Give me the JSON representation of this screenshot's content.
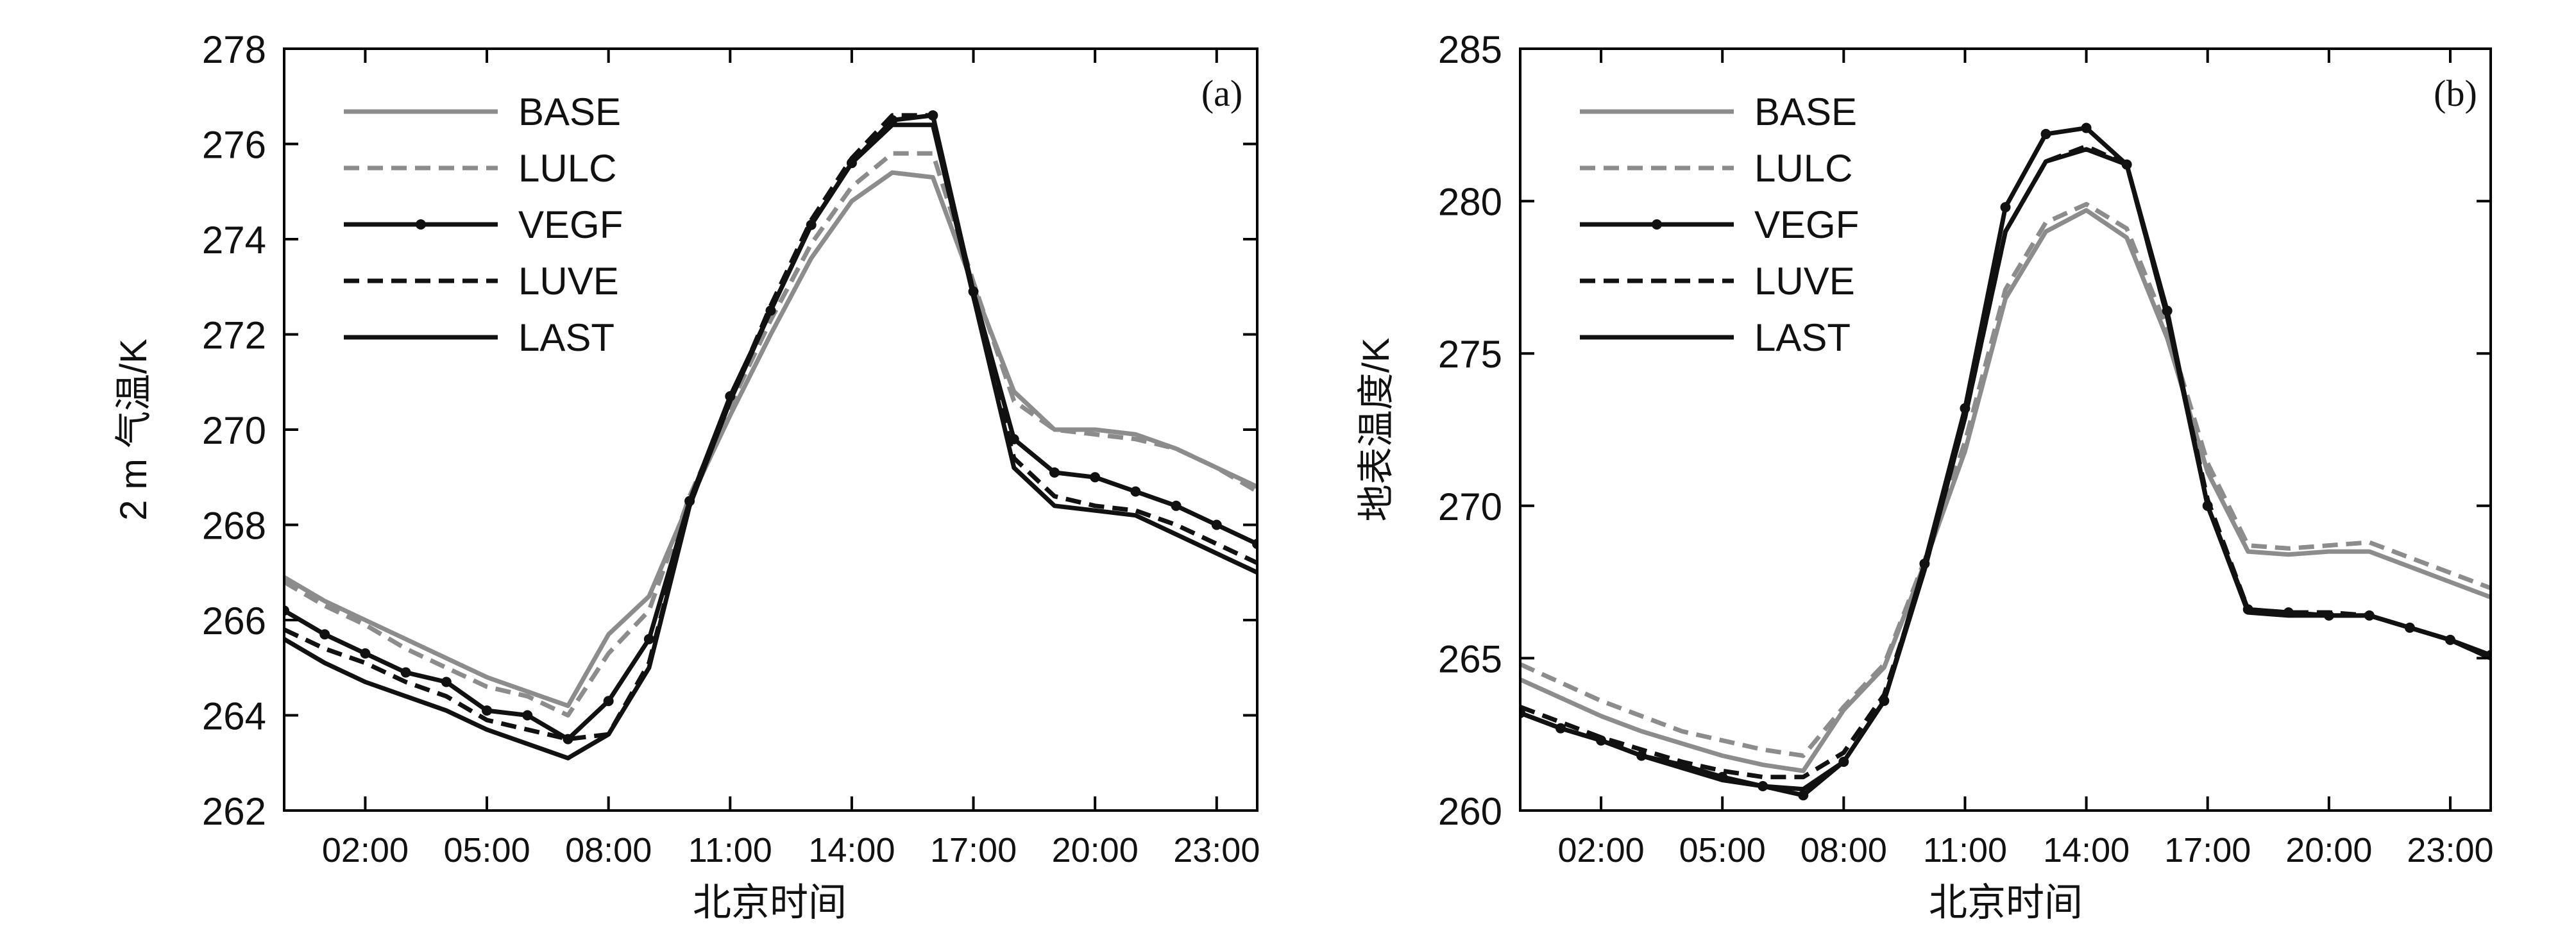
{
  "chart_data": [
    {
      "type": "line",
      "panel_label": "(a)",
      "xlabel": "北京时间",
      "ylabel": "2 m 气温/K",
      "xlim": [
        0,
        24
      ],
      "ylim": [
        262,
        278
      ],
      "yticks": [
        262,
        264,
        266,
        268,
        270,
        272,
        274,
        276,
        278
      ],
      "xticks": [
        2,
        5,
        8,
        11,
        14,
        17,
        20,
        23
      ],
      "xtick_labels": [
        "02:00",
        "05:00",
        "08:00",
        "11:00",
        "14:00",
        "17:00",
        "20:00",
        "23:00"
      ],
      "grid": false,
      "legend_position": "top-left",
      "x": [
        0,
        1,
        2,
        3,
        4,
        5,
        6,
        7,
        8,
        9,
        10,
        11,
        12,
        13,
        14,
        15,
        16,
        17,
        18,
        19,
        20,
        21,
        22,
        23,
        24
      ],
      "series": [
        {
          "name": "BASE",
          "color": "#8c8c8c",
          "style": "solid",
          "marker": false,
          "values": [
            266.9,
            266.4,
            266.0,
            265.6,
            265.2,
            264.8,
            264.5,
            264.2,
            265.7,
            266.5,
            268.5,
            270.3,
            272.0,
            273.6,
            274.8,
            275.4,
            275.3,
            273.0,
            270.8,
            270.0,
            270.0,
            269.9,
            269.6,
            269.2,
            268.8
          ]
        },
        {
          "name": "LULC",
          "color": "#8c8c8c",
          "style": "dashed",
          "marker": false,
          "values": [
            266.8,
            266.3,
            265.9,
            265.4,
            265.0,
            264.6,
            264.4,
            264.0,
            265.3,
            266.2,
            268.6,
            270.5,
            272.3,
            273.9,
            275.1,
            275.8,
            275.8,
            273.1,
            270.6,
            270.0,
            269.9,
            269.8,
            269.6,
            269.2,
            268.7
          ]
        },
        {
          "name": "VEGF",
          "color": "#111111",
          "style": "solid",
          "marker": true,
          "values": [
            266.2,
            265.7,
            265.3,
            264.9,
            264.7,
            264.1,
            264.0,
            263.5,
            264.3,
            265.6,
            268.5,
            270.7,
            272.5,
            274.3,
            275.6,
            276.5,
            276.6,
            272.9,
            269.8,
            269.1,
            269.0,
            268.7,
            268.4,
            268.0,
            267.6
          ]
        },
        {
          "name": "LUVE",
          "color": "#111111",
          "style": "dashed",
          "marker": false,
          "values": [
            265.8,
            265.4,
            265.1,
            264.7,
            264.4,
            263.9,
            263.7,
            263.5,
            263.6,
            265.1,
            268.4,
            270.6,
            272.6,
            274.4,
            275.7,
            276.6,
            276.6,
            272.8,
            269.4,
            268.6,
            268.4,
            268.3,
            268.0,
            267.6,
            267.2
          ]
        },
        {
          "name": "LAST",
          "color": "#111111",
          "style": "solid",
          "marker": false,
          "values": [
            265.6,
            265.1,
            264.7,
            264.4,
            264.1,
            263.7,
            263.4,
            263.1,
            263.6,
            265.0,
            268.4,
            270.6,
            272.5,
            274.3,
            275.6,
            276.4,
            276.4,
            272.8,
            269.2,
            268.4,
            268.3,
            268.2,
            267.8,
            267.4,
            267.0
          ]
        }
      ]
    },
    {
      "type": "line",
      "panel_label": "(b)",
      "xlabel": "北京时间",
      "ylabel": "地表温度/K",
      "xlim": [
        0,
        24
      ],
      "ylim": [
        260,
        285
      ],
      "yticks": [
        260,
        265,
        270,
        275,
        280,
        285
      ],
      "xticks": [
        2,
        5,
        8,
        11,
        14,
        17,
        20,
        23
      ],
      "xtick_labels": [
        "02:00",
        "05:00",
        "08:00",
        "11:00",
        "14:00",
        "17:00",
        "20:00",
        "23:00"
      ],
      "grid": false,
      "legend_position": "top-left",
      "x": [
        0,
        1,
        2,
        3,
        4,
        5,
        6,
        7,
        8,
        9,
        10,
        11,
        12,
        13,
        14,
        15,
        16,
        17,
        18,
        19,
        20,
        21,
        22,
        23,
        24
      ],
      "series": [
        {
          "name": "BASE",
          "color": "#8c8c8c",
          "style": "solid",
          "marker": false,
          "values": [
            264.3,
            263.7,
            263.1,
            262.6,
            262.2,
            261.8,
            261.5,
            261.3,
            263.3,
            264.7,
            268.1,
            271.8,
            276.8,
            279.0,
            279.7,
            278.8,
            275.5,
            271.1,
            268.5,
            268.4,
            268.5,
            268.5,
            268.0,
            267.5,
            267.0
          ]
        },
        {
          "name": "LULC",
          "color": "#8c8c8c",
          "style": "dashed",
          "marker": false,
          "values": [
            264.8,
            264.2,
            263.6,
            263.1,
            262.6,
            262.3,
            262.0,
            261.8,
            263.4,
            264.8,
            268.2,
            272.1,
            277.1,
            279.3,
            279.9,
            279.1,
            275.8,
            271.4,
            268.7,
            268.6,
            268.7,
            268.8,
            268.3,
            267.8,
            267.3
          ]
        },
        {
          "name": "VEGF",
          "color": "#111111",
          "style": "solid",
          "marker": true,
          "values": [
            263.2,
            262.7,
            262.3,
            261.8,
            261.5,
            261.1,
            260.8,
            260.5,
            261.6,
            263.6,
            268.1,
            273.2,
            279.8,
            282.2,
            282.4,
            281.2,
            276.4,
            270.0,
            266.6,
            266.5,
            266.4,
            266.4,
            266.0,
            265.6,
            265.1
          ]
        },
        {
          "name": "LUVE",
          "color": "#111111",
          "style": "dashed",
          "marker": false,
          "values": [
            263.4,
            262.9,
            262.4,
            262.0,
            261.6,
            261.3,
            261.1,
            261.1,
            261.9,
            263.8,
            267.9,
            272.9,
            279.0,
            281.3,
            281.8,
            281.2,
            276.2,
            270.2,
            266.6,
            266.5,
            266.5,
            266.4,
            266.0,
            265.6,
            265.0
          ]
        },
        {
          "name": "LAST",
          "color": "#111111",
          "style": "solid",
          "marker": false,
          "values": [
            263.2,
            262.7,
            262.3,
            261.8,
            261.4,
            261.0,
            260.8,
            260.7,
            261.6,
            263.6,
            267.9,
            272.9,
            279.0,
            281.3,
            281.7,
            281.2,
            276.2,
            270.0,
            266.5,
            266.4,
            266.4,
            266.4,
            266.0,
            265.6,
            265.0
          ]
        }
      ]
    }
  ]
}
